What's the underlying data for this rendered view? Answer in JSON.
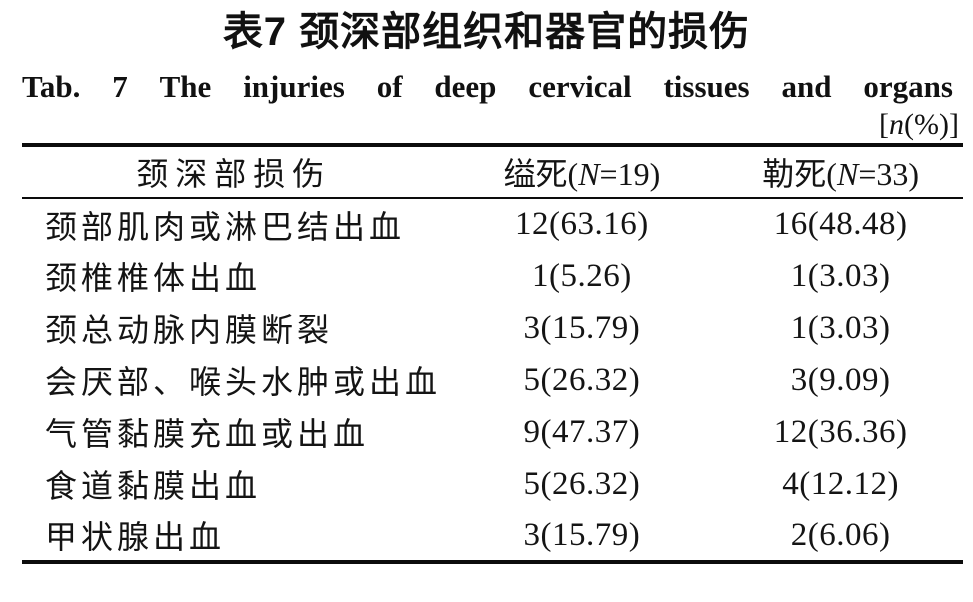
{
  "page": {
    "title_cn": "表7 颈深部组织和器官的损伤",
    "title_en_parts": {
      "tab": "Tab.",
      "num": "7",
      "w1": "The",
      "w2": "injuries",
      "w3": "of",
      "w4": "deep",
      "w5": "cervical",
      "w6": "tissues",
      "w7": "and",
      "w8": "organs"
    },
    "unit_note": {
      "open": "[",
      "var": "n",
      "rest": "(%)]"
    }
  },
  "table": {
    "header": {
      "col1": "颈深部损伤",
      "col2_prefix": "缢死(",
      "col2_var": "N",
      "col2_suffix": "=19)",
      "col3_prefix": "勒死(",
      "col3_var": "N",
      "col3_suffix": "=33)"
    },
    "rows": [
      {
        "label": "颈部肌肉或淋巴结出血",
        "hanging": "12(63.16)",
        "ligature": "16(48.48)"
      },
      {
        "label": "颈椎椎体出血",
        "hanging": "1(5.26)",
        "ligature": "1(3.03)"
      },
      {
        "label": "颈总动脉内膜断裂",
        "hanging": "3(15.79)",
        "ligature": "1(3.03)"
      },
      {
        "label": "会厌部、喉头水肿或出血",
        "hanging": "5(26.32)",
        "ligature": "3(9.09)"
      },
      {
        "label": "气管黏膜充血或出血",
        "hanging": "9(47.37)",
        "ligature": "12(36.36)"
      },
      {
        "label": "食道黏膜出血",
        "hanging": "5(26.32)",
        "ligature": "4(12.12)"
      },
      {
        "label": "甲状腺出血",
        "hanging": "3(15.79)",
        "ligature": "2(6.06)"
      }
    ]
  }
}
